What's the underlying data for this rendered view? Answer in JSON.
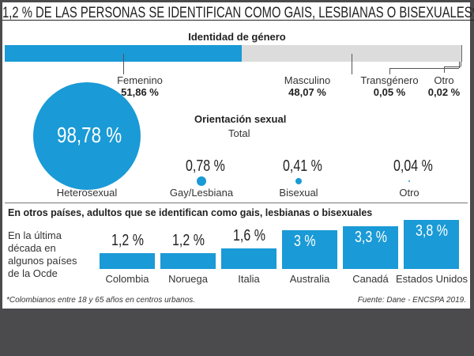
{
  "title": "1,2 % DE LAS PERSONAS SE IDENTIFICAN COMO GAIS, LESBIANAS O BISEXUALES*",
  "colors": {
    "accent": "#1a9ad6",
    "rest": "#dcdcdc",
    "background": "#4b4b4d"
  },
  "chart_data": [
    {
      "type": "bar",
      "subtype": "stacked-horizontal",
      "title": "Identidad de género",
      "categories": [
        "Femenino",
        "Masculino",
        "Transgénero",
        "Otro"
      ],
      "values": [
        51.86,
        48.07,
        0.05,
        0.02
      ],
      "labels": [
        "51,86 %",
        "48,07 %",
        "0,05 %",
        "0,02 %"
      ]
    },
    {
      "type": "scatter",
      "subtype": "proportional-circles",
      "title": "Orientación sexual",
      "subtitle": "Total",
      "categories": [
        "Heterosexual",
        "Gay/Lesbiana",
        "Bisexual",
        "Otro"
      ],
      "values": [
        98.78,
        0.78,
        0.41,
        0.04
      ],
      "labels": [
        "98,78 %",
        "0,78 %",
        "0,41 %",
        "0,04 %"
      ]
    },
    {
      "type": "bar",
      "title": "En otros países, adultos que se identifican como gais, lesbianas o bisexuales",
      "subtitle": "En la última década en algunos países de la Ocde",
      "categories": [
        "Colombia",
        "Noruega",
        "Italia",
        "Australia",
        "Canadá",
        "Estados Unidos"
      ],
      "values": [
        1.2,
        1.2,
        1.6,
        3,
        3.3,
        3.8
      ],
      "labels": [
        "1,2 %",
        "1,2 %",
        "1,6 %",
        "3 %",
        "3,3 %",
        "3,8 %"
      ]
    }
  ],
  "footnote": "*Colombianos entre 18 y 65 años en centros urbanos.",
  "source": "Fuente: Dane - ENCSPA 2019."
}
